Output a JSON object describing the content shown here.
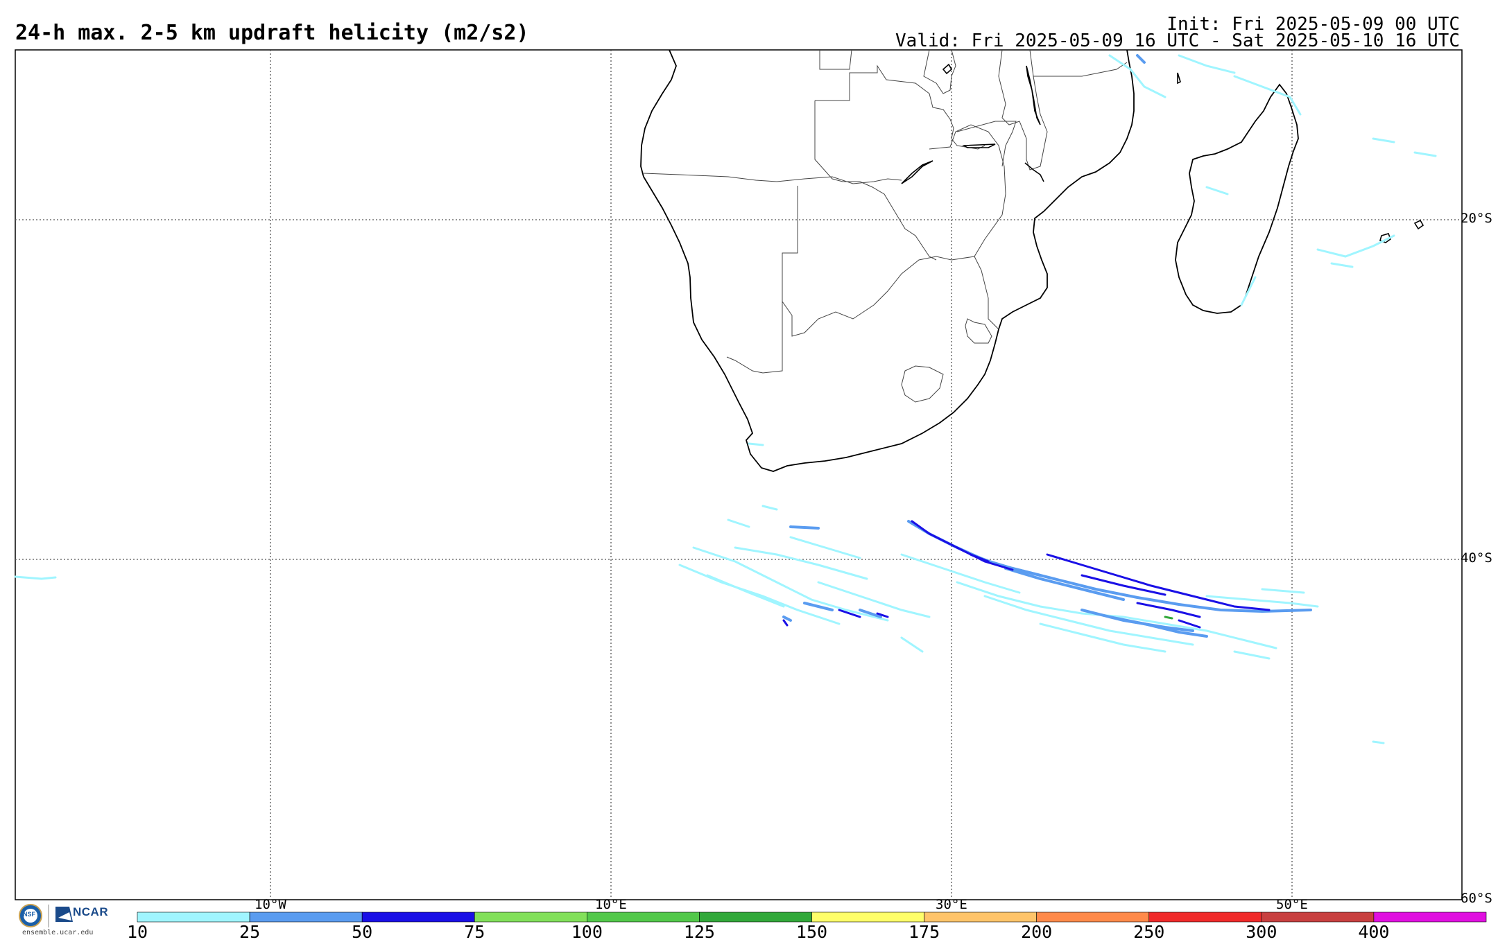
{
  "header": {
    "title": "24-h max. 2-5 km updraft helicity (m2/s2)",
    "init": "Init: Fri 2025-05-09 00 UTC",
    "valid": "Valid: Fri 2025-05-09 16 UTC - Sat 2025-05-10 16 UTC"
  },
  "grid": {
    "lat_labels": [
      "20°S",
      "40°S",
      "60°S"
    ],
    "lon_labels": [
      "10°W",
      "10°E",
      "30°E",
      "50°E"
    ]
  },
  "colorbar": {
    "labels": [
      "10",
      "25",
      "50",
      "75",
      "100",
      "125",
      "150",
      "175",
      "200",
      "250",
      "300",
      "400"
    ],
    "colors": [
      "#a0f5ff",
      "#5a9cf0",
      "#1a10e6",
      "#82e05a",
      "#52c84a",
      "#32a83a",
      "#ffff6a",
      "#ffc46a",
      "#ff8a4a",
      "#f02a2a",
      "#c84040",
      "#e010e0"
    ]
  },
  "branding": {
    "nsf": "NSF",
    "ncar": "NCAR",
    "site": "ensemble.ucar.edu"
  }
}
